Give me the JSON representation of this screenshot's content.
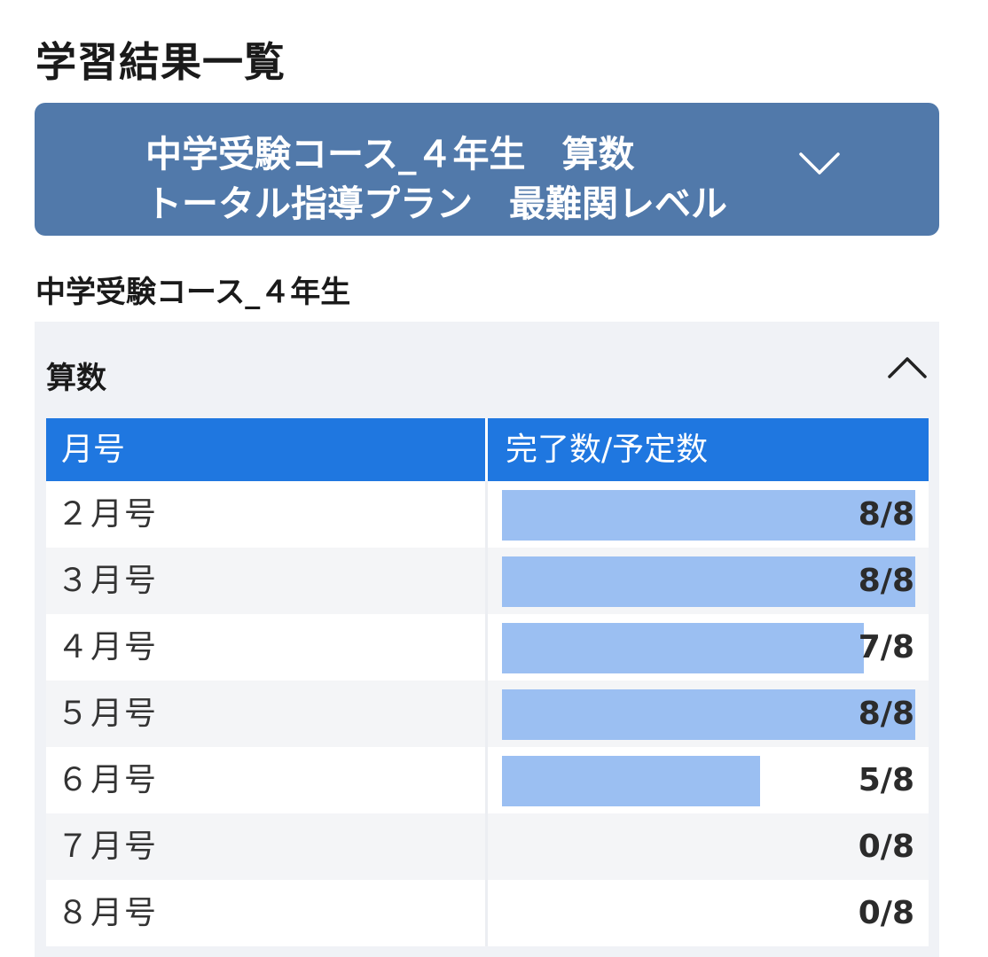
{
  "page": {
    "title": "学習結果一覧"
  },
  "course_selector": {
    "line1": "中学受験コース_４年生　算数",
    "line2": "トータル指導プラン　最難関レベル",
    "icon": "chevron-down-icon"
  },
  "section": {
    "heading": "中学受験コース_４年生"
  },
  "subject": {
    "label": "算数",
    "icon": "chevron-up-icon",
    "table": {
      "headers": {
        "month": "月号",
        "progress": "完了数/予定数"
      },
      "rows": [
        {
          "month": "２月号",
          "count": "8/8",
          "completed": 8,
          "planned": 8
        },
        {
          "month": "３月号",
          "count": "8/8",
          "completed": 8,
          "planned": 8
        },
        {
          "month": "４月号",
          "count": "7/8",
          "completed": 7,
          "planned": 8
        },
        {
          "month": "５月号",
          "count": "8/8",
          "completed": 8,
          "planned": 8
        },
        {
          "month": "６月号",
          "count": "5/8",
          "completed": 5,
          "planned": 8
        },
        {
          "month": "７月号",
          "count": "0/8",
          "completed": 0,
          "planned": 8
        },
        {
          "month": "８月号",
          "count": "0/8",
          "completed": 0,
          "planned": 8
        }
      ]
    }
  },
  "colors": {
    "selector_bg": "#5179aa",
    "table_header_bg": "#1f77e0",
    "bar_fill": "#9bbff2",
    "panel_bg": "#f0f2f6"
  }
}
